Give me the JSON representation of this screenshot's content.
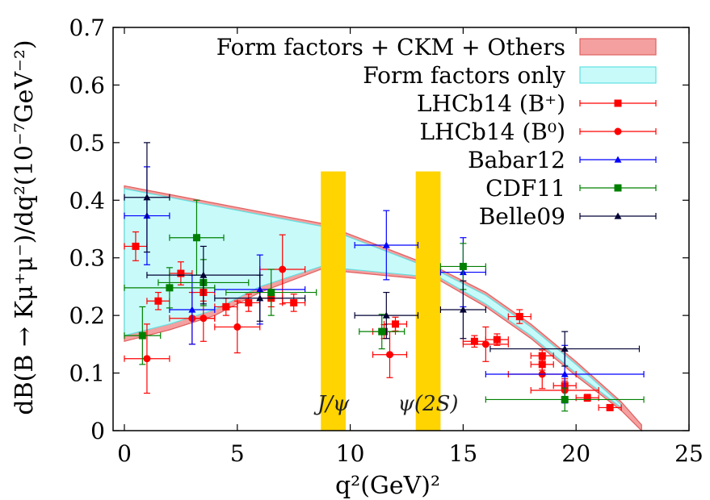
{
  "chart_data": {
    "type": "scatter",
    "xlabel": "q²(GeV)²",
    "ylabel": "dB(B → Kμ⁺μ⁻)/dq²(10⁻⁷GeV⁻²)",
    "xlim": [
      -0.5,
      25
    ],
    "ylim": [
      0,
      0.7
    ],
    "xticks": [
      "0",
      "5",
      "10",
      "15",
      "20",
      "25"
    ],
    "yticks": [
      "0",
      "0.1",
      "0.2",
      "0.3",
      "0.4",
      "0.5",
      "0.6",
      "0.7"
    ],
    "xtick_values": [
      0,
      5,
      10,
      15,
      20,
      25
    ],
    "ytick_values": [
      0,
      0.1,
      0.2,
      0.3,
      0.4,
      0.5,
      0.6,
      0.7
    ],
    "bands": [
      {
        "name": "Form factors + CKM + Others",
        "color": "#f4a0a0",
        "edge": "#e06060",
        "x": [
          0,
          2,
          4,
          6,
          8.7,
          14,
          16,
          18,
          20,
          22,
          22.9
        ],
        "upper": [
          0.425,
          0.41,
          0.395,
          0.38,
          0.36,
          0.28,
          0.24,
          0.185,
          0.12,
          0.05,
          0.01
        ],
        "lower": [
          0.155,
          0.175,
          0.2,
          0.24,
          0.28,
          0.26,
          0.215,
          0.16,
          0.095,
          0.035,
          0.0
        ]
      },
      {
        "name": "Form factors only",
        "color": "#c8fafa",
        "edge": "#60e0e0",
        "x": [
          0,
          2,
          4,
          6,
          8.7,
          14,
          16,
          18,
          20,
          22
        ],
        "upper": [
          0.42,
          0.405,
          0.39,
          0.375,
          0.355,
          0.275,
          0.235,
          0.18,
          0.115,
          0.045
        ],
        "lower": [
          0.165,
          0.185,
          0.21,
          0.25,
          0.285,
          0.265,
          0.22,
          0.165,
          0.1,
          0.04
        ]
      }
    ],
    "vetoes": [
      {
        "label": "J/ψ",
        "x0": 8.7,
        "x1": 9.8,
        "ymax": 0.45,
        "color": "#ffd400"
      },
      {
        "label": "ψ(2S)",
        "x0": 12.9,
        "x1": 14.0,
        "ymax": 0.45,
        "color": "#ffd400"
      }
    ],
    "series": [
      {
        "name": "LHCb14 (B⁺)",
        "color": "#ff0000",
        "marker": "square",
        "points": [
          {
            "x": 0.5,
            "y": 0.32,
            "xerr": 0.5,
            "yerr": 0.025
          },
          {
            "x": 1.5,
            "y": 0.225,
            "xerr": 0.5,
            "yerr": 0.015
          },
          {
            "x": 2.5,
            "y": 0.273,
            "xerr": 0.5,
            "yerr": 0.02
          },
          {
            "x": 3.5,
            "y": 0.24,
            "xerr": 0.5,
            "yerr": 0.015
          },
          {
            "x": 4.5,
            "y": 0.215,
            "xerr": 0.5,
            "yerr": 0.015
          },
          {
            "x": 5.5,
            "y": 0.222,
            "xerr": 0.5,
            "yerr": 0.015
          },
          {
            "x": 6.5,
            "y": 0.23,
            "xerr": 0.5,
            "yerr": 0.015
          },
          {
            "x": 7.5,
            "y": 0.222,
            "xerr": 0.5,
            "yerr": 0.015
          },
          {
            "x": 11.5,
            "y": 0.172,
            "xerr": 0.5,
            "yerr": 0.012
          },
          {
            "x": 12.0,
            "y": 0.185,
            "xerr": 0.5,
            "yerr": 0.012
          },
          {
            "x": 15.5,
            "y": 0.155,
            "xerr": 0.5,
            "yerr": 0.01
          },
          {
            "x": 16.5,
            "y": 0.158,
            "xerr": 0.5,
            "yerr": 0.01
          },
          {
            "x": 17.5,
            "y": 0.198,
            "xerr": 0.5,
            "yerr": 0.012
          },
          {
            "x": 18.5,
            "y": 0.13,
            "xerr": 0.5,
            "yerr": 0.01
          },
          {
            "x": 18.5,
            "y": 0.115,
            "xerr": 0.5,
            "yerr": 0.01
          },
          {
            "x": 19.5,
            "y": 0.078,
            "xerr": 0.5,
            "yerr": 0.008
          },
          {
            "x": 20.5,
            "y": 0.057,
            "xerr": 0.5,
            "yerr": 0.006
          },
          {
            "x": 21.5,
            "y": 0.04,
            "xerr": 0.5,
            "yerr": 0.005
          }
        ]
      },
      {
        "name": "LHCb14 (B⁰)",
        "color": "#ff0000",
        "marker": "circle",
        "points": [
          {
            "x": 1.0,
            "y": 0.125,
            "xerr": 1.0,
            "yerr": 0.06
          },
          {
            "x": 3.0,
            "y": 0.195,
            "xerr": 1.0,
            "yerr": 0.045
          },
          {
            "x": 3.5,
            "y": 0.195,
            "xerr": 0.5,
            "yerr": 0.04
          },
          {
            "x": 5.0,
            "y": 0.18,
            "xerr": 1.0,
            "yerr": 0.045
          },
          {
            "x": 7.0,
            "y": 0.28,
            "xerr": 1.0,
            "yerr": 0.06
          },
          {
            "x": 11.75,
            "y": 0.132,
            "xerr": 0.75,
            "yerr": 0.04
          },
          {
            "x": 16.0,
            "y": 0.15,
            "xerr": 1.0,
            "yerr": 0.03
          },
          {
            "x": 18.5,
            "y": 0.098,
            "xerr": 1.5,
            "yerr": 0.025
          },
          {
            "x": 19.5,
            "y": 0.07,
            "xerr": 1.5,
            "yerr": 0.02
          }
        ]
      },
      {
        "name": "Babar12",
        "color": "#0000ff",
        "marker": "triangle",
        "points": [
          {
            "x": 1.0,
            "y": 0.373,
            "xerr": 1.0,
            "yerr": 0.085
          },
          {
            "x": 3.0,
            "y": 0.21,
            "xerr": 1.0,
            "yerr": 0.06
          },
          {
            "x": 6.0,
            "y": 0.245,
            "xerr": 2.0,
            "yerr": 0.06
          },
          {
            "x": 11.6,
            "y": 0.322,
            "xerr": 1.4,
            "yerr": 0.06
          },
          {
            "x": 15.0,
            "y": 0.275,
            "xerr": 1.0,
            "yerr": 0.06
          },
          {
            "x": 19.5,
            "y": 0.098,
            "xerr": 3.5,
            "yerr": 0.05
          }
        ]
      },
      {
        "name": "CDF11",
        "color": "#008000",
        "marker": "square",
        "points": [
          {
            "x": 0.8,
            "y": 0.165,
            "xerr": 0.8,
            "yerr": 0.05
          },
          {
            "x": 2.0,
            "y": 0.248,
            "xerr": 2.0,
            "yerr": 0.035
          },
          {
            "x": 3.2,
            "y": 0.335,
            "xerr": 1.2,
            "yerr": 0.065
          },
          {
            "x": 3.5,
            "y": 0.257,
            "xerr": 2.0,
            "yerr": 0.04
          },
          {
            "x": 6.5,
            "y": 0.24,
            "xerr": 2.0,
            "yerr": 0.04
          },
          {
            "x": 11.4,
            "y": 0.172,
            "xerr": 1.0,
            "yerr": 0.03
          },
          {
            "x": 15.0,
            "y": 0.285,
            "xerr": 1.0,
            "yerr": 0.04
          },
          {
            "x": 19.5,
            "y": 0.054,
            "xerr": 3.5,
            "yerr": 0.02
          }
        ]
      },
      {
        "name": "Belle09",
        "color": "#000033",
        "marker": "triangle",
        "points": [
          {
            "x": 1.0,
            "y": 0.405,
            "xerr": 1.0,
            "yerr": 0.095
          },
          {
            "x": 3.5,
            "y": 0.27,
            "xerr": 2.5,
            "yerr": 0.05
          },
          {
            "x": 6.0,
            "y": 0.23,
            "xerr": 2.0,
            "yerr": 0.04
          },
          {
            "x": 11.6,
            "y": 0.2,
            "xerr": 1.4,
            "yerr": 0.04
          },
          {
            "x": 15.0,
            "y": 0.21,
            "xerr": 1.0,
            "yerr": 0.05
          },
          {
            "x": 19.5,
            "y": 0.142,
            "xerr": 3.3,
            "yerr": 0.03
          }
        ]
      }
    ],
    "legend": {
      "position": "top-right",
      "entries": [
        {
          "label": "Form factors + CKM + Others",
          "kind": "band",
          "color": "#f4a0a0",
          "edge": "#e06060"
        },
        {
          "label": "Form factors only",
          "kind": "band",
          "color": "#c8fafa",
          "edge": "#60e0e0"
        },
        {
          "label": "LHCb14 (B⁺)",
          "kind": "marker",
          "marker": "square",
          "color": "#ff0000"
        },
        {
          "label": "LHCb14 (B⁰)",
          "kind": "marker",
          "marker": "circle",
          "color": "#ff0000"
        },
        {
          "label": "Babar12",
          "kind": "marker",
          "marker": "triangle",
          "color": "#0000ff"
        },
        {
          "label": "CDF11",
          "kind": "marker",
          "marker": "square",
          "color": "#008000"
        },
        {
          "label": "Belle09",
          "kind": "marker",
          "marker": "triangle",
          "color": "#000033"
        }
      ]
    },
    "grid": false
  }
}
